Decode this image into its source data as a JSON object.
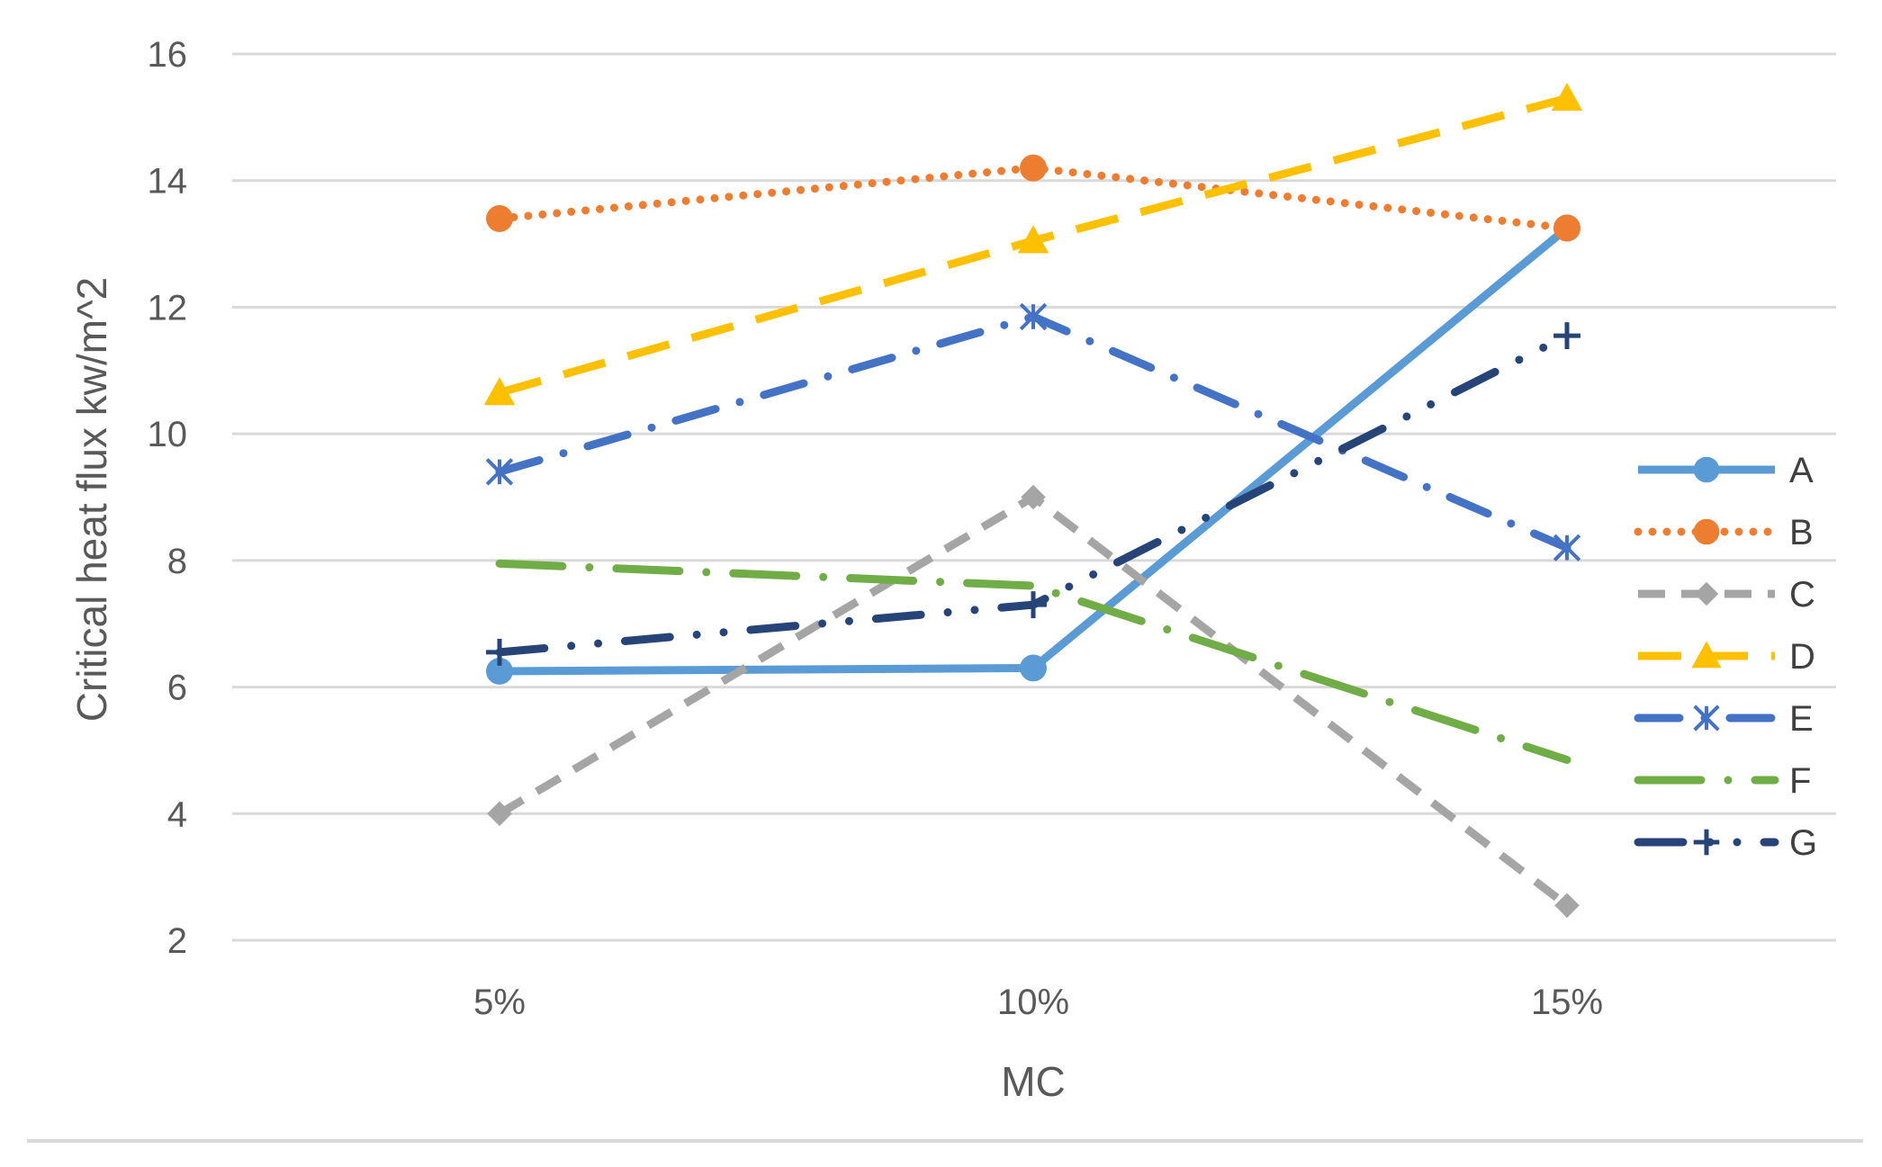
{
  "chart_data": {
    "type": "line",
    "categories": [
      "5%",
      "10%",
      "15%"
    ],
    "xlabel": "MC",
    "ylabel": "Critical heat flux kw/m^2",
    "ylim": [
      2,
      16
    ],
    "yticks": [
      2,
      4,
      6,
      8,
      10,
      12,
      14,
      16
    ],
    "grid": true,
    "legend_position": "right",
    "series": [
      {
        "name": "A",
        "values": [
          6.25,
          6.3,
          13.25
        ],
        "color": "#5B9BD5",
        "dash": "solid",
        "marker": "circle"
      },
      {
        "name": "B",
        "values": [
          13.4,
          14.2,
          13.25
        ],
        "color": "#ED7D31",
        "dash": "dotted",
        "marker": "circle"
      },
      {
        "name": "C",
        "values": [
          4.0,
          9.0,
          2.55
        ],
        "color": "#A5A5A5",
        "dash": "dashed",
        "marker": "diamond"
      },
      {
        "name": "D",
        "values": [
          10.65,
          13.05,
          15.3
        ],
        "color": "#FFC000",
        "dash": "long-dash",
        "marker": "triangle"
      },
      {
        "name": "E",
        "values": [
          9.4,
          11.85,
          8.2
        ],
        "color": "#4472C4",
        "dash": "dash-dot",
        "marker": "star"
      },
      {
        "name": "F",
        "values": [
          7.95,
          7.6,
          4.85
        ],
        "color": "#70AD47",
        "dash": "long-dash-dot",
        "marker": "none"
      },
      {
        "name": "G",
        "values": [
          6.55,
          7.3,
          11.55
        ],
        "color": "#264478",
        "dash": "long-dash-dot-dot",
        "marker": "plus"
      }
    ]
  }
}
